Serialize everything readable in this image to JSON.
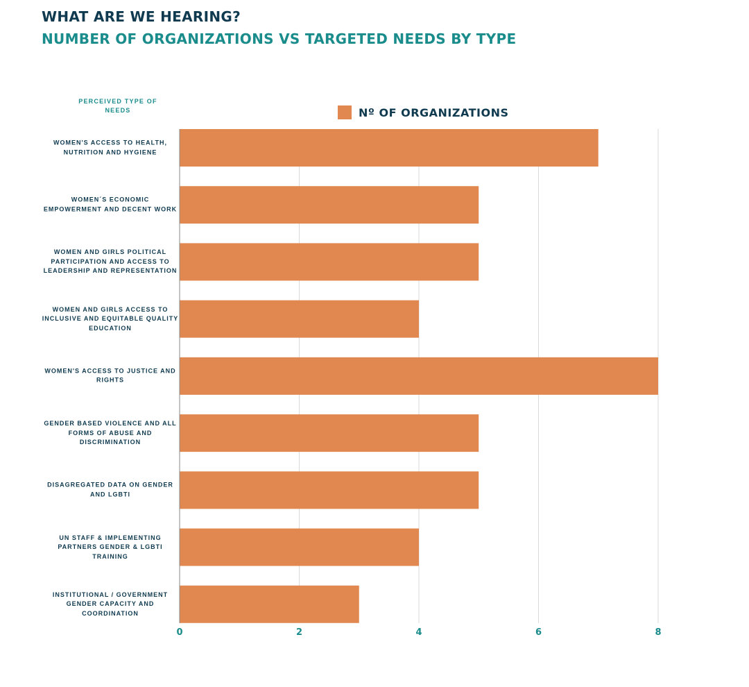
{
  "chart_data": {
    "type": "bar",
    "orientation": "horizontal",
    "title": "WHAT ARE WE HEARING?",
    "subtitle": "NUMBER OF ORGANIZATIONS VS TARGETED NEEDS BY TYPE",
    "ylabel": "PERCEIVED TYPE OF NEEDS",
    "xlabel": "",
    "xlim": [
      0,
      8
    ],
    "xticks": [
      "0",
      "2",
      "4",
      "6",
      "8"
    ],
    "grid": true,
    "legend_position": "top-center",
    "categories": [
      "WOMEN'S ACCESS TO HEALTH, NUTRITION AND HYGIENE",
      "WOMEN´S ECONOMIC EMPOWERMENT AND DECENT WORK",
      "WOMEN AND GIRLS POLITICAL PARTICIPATION AND ACCESS TO LEADERSHIP AND REPRESENTATION",
      "WOMEN AND GIRLS ACCESS TO INCLUSIVE AND EQUITABLE QUALITY EDUCATION",
      "WOMEN'S ACCESS TO JUSTICE AND RIGHTS",
      "GENDER BASED VIOLENCE AND ALL FORMS OF ABUSE AND DISCRIMINATION",
      "DISAGREGATED DATA ON GENDER AND LGBTI",
      "UN STAFF & IMPLEMENTING PARTNERS GENDER & LGBTI TRAINING",
      "INSTITUTIONAL / GOVERNMENT GENDER CAPACITY AND COORDINATION"
    ],
    "series": [
      {
        "name": "Nº OF ORGANIZATIONS",
        "values": [
          7,
          5,
          5,
          4,
          8,
          5,
          5,
          4,
          3
        ],
        "color": "#e08850"
      }
    ]
  },
  "colors": {
    "bar": "#e08850",
    "title": "#0f3a4f",
    "accent": "#1a8c8c",
    "grid": "#d9d9d9"
  }
}
